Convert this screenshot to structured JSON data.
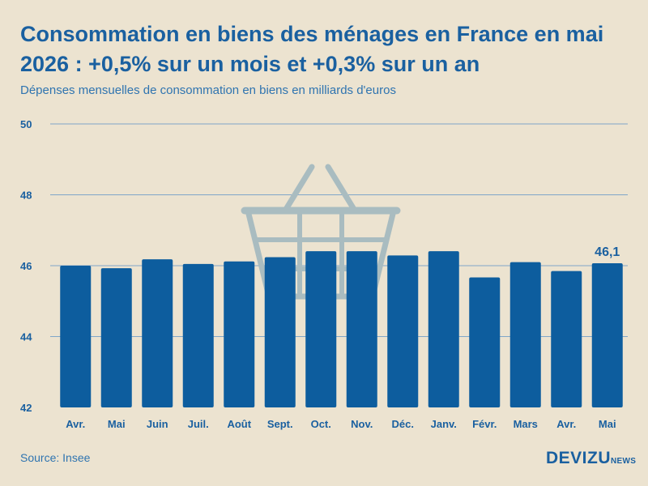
{
  "header": {
    "title": "Consommation en biens des ménages en France en mai 2026 : +0,5% sur un mois et +0,3% sur un an",
    "subtitle": "Dépenses mensuelles de consommation en biens en milliards d'euros"
  },
  "footer": {
    "source": "Source: Insee",
    "logo_main": "DEVIZU",
    "logo_sub": "NEWS"
  },
  "colors": {
    "background": "#ece3d0",
    "bar": "#0d5d9e",
    "accent": "#1a60a0",
    "grid": "#7fa6c9",
    "watermark": "#a9bcc0"
  },
  "icons": {
    "watermark": "shopping-basket-icon"
  },
  "chart_data": {
    "type": "bar",
    "title": "Consommation en biens des ménages en France en mai 2026 : +0,5% sur un mois et +0,3% sur un an",
    "subtitle": "Dépenses mensuelles de consommation en biens en milliards d'euros",
    "categories": [
      "Avr.",
      "Mai",
      "Juin",
      "Juil.",
      "Août",
      "Sept.",
      "Oct.",
      "Nov.",
      "Déc.",
      "Janv.",
      "Févr.",
      "Mars",
      "Avr.",
      "Mai"
    ],
    "values": [
      46.0,
      45.93,
      46.18,
      46.05,
      46.12,
      46.24,
      46.41,
      46.41,
      46.29,
      46.41,
      45.67,
      46.1,
      45.85,
      46.07
    ],
    "data_labels": [
      null,
      null,
      null,
      null,
      null,
      null,
      null,
      null,
      null,
      null,
      null,
      null,
      null,
      "46,1"
    ],
    "ylim": [
      42,
      50
    ],
    "yticks": [
      42,
      44,
      46,
      48,
      50
    ],
    "ytick_labels": [
      "42",
      "44",
      "46",
      "48",
      "50"
    ],
    "grid": true,
    "xlabel": "",
    "ylabel": ""
  }
}
